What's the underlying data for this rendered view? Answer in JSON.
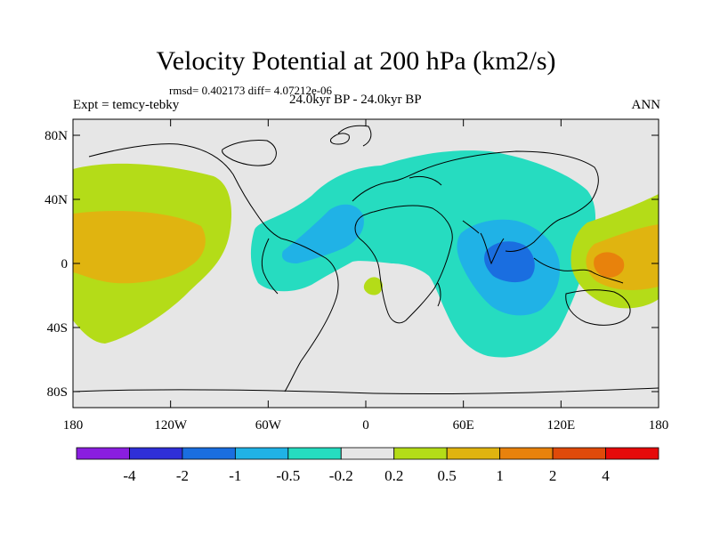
{
  "title": "Velocity Potential at 200 hPa (km2/s)",
  "stats_line": "rmsd= 0.402173 diff= 4.07212e-06",
  "experiment_label": "Expt = temcy-tebky",
  "period_label": "24.0kyr BP - 24.0kyr BP",
  "season_label": "ANN",
  "map": {
    "projection": "cylindrical equidistant",
    "lon_range": [
      -180,
      180
    ],
    "lat_range": [
      -90,
      90
    ],
    "x_ticks": [
      {
        "lon": -180,
        "label": "180"
      },
      {
        "lon": -120,
        "label": "120W"
      },
      {
        "lon": -60,
        "label": "60W"
      },
      {
        "lon": 0,
        "label": "0"
      },
      {
        "lon": 60,
        "label": "60E"
      },
      {
        "lon": 120,
        "label": "120E"
      },
      {
        "lon": 180,
        "label": "180"
      }
    ],
    "y_ticks": [
      {
        "lat": 80,
        "label": "80N"
      },
      {
        "lat": 40,
        "label": "40N"
      },
      {
        "lat": 0,
        "label": "0"
      },
      {
        "lat": -40,
        "label": "40S"
      },
      {
        "lat": -80,
        "label": "80S"
      }
    ]
  },
  "colorbar": {
    "colors": [
      "#8a1ee0",
      "#2f2fd8",
      "#1a6ee0",
      "#20b2e6",
      "#26dcc0",
      "#e6e6e6",
      "#b4dc18",
      "#e0b410",
      "#e8820c",
      "#e04a0a",
      "#e60a0a"
    ],
    "labels": [
      "-4",
      "-2",
      "-1",
      "-0.5",
      "-0.2",
      "0.2",
      "0.5",
      "1",
      "2",
      "4"
    ]
  },
  "fill_colors": {
    "background": "#e6e6e6",
    "lightgreen": "#b4dc18",
    "orange": "#e0b410",
    "darkorange": "#e8820c",
    "teal": "#26dcc0",
    "cyan": "#20b2e6",
    "blue": "#1a6ee0"
  }
}
